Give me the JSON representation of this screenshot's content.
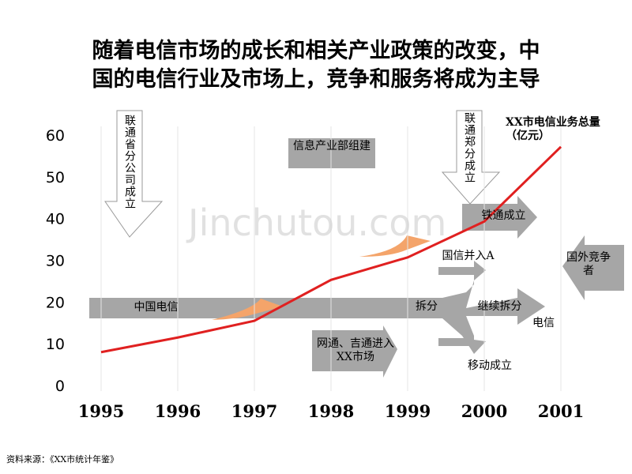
{
  "chart_data": {
    "type": "line",
    "title": [
      "随着电信市场的成长和相关产业政策的改变，中",
      "国的电信行业及市场上，竞争和服务将成为主导"
    ],
    "categories": [
      "1995",
      "1996",
      "1997",
      "1998",
      "1999",
      "2000",
      "2001"
    ],
    "series": [
      {
        "name": "XX市电信业务总量（亿元）",
        "color": "#e02020",
        "values": [
          8,
          11.5,
          15.5,
          25.3,
          30.7,
          39.3,
          57.2
        ]
      }
    ],
    "ylim": [
      0,
      60
    ],
    "yticks": [
      0,
      10,
      20,
      30,
      40,
      50,
      60
    ],
    "annotations": [
      "联通省分公司成立",
      "信息产业部组建",
      "联通郑分成立",
      "铁通成立",
      "国信并入A",
      "国外竞争者",
      "中国电信",
      "拆分",
      "继续拆分",
      "电信",
      "网通、吉通进入XX市场",
      "移动成立"
    ],
    "watermark": "Jinchutou.com",
    "source": "资料来源：《XX市统计年鉴》"
  }
}
